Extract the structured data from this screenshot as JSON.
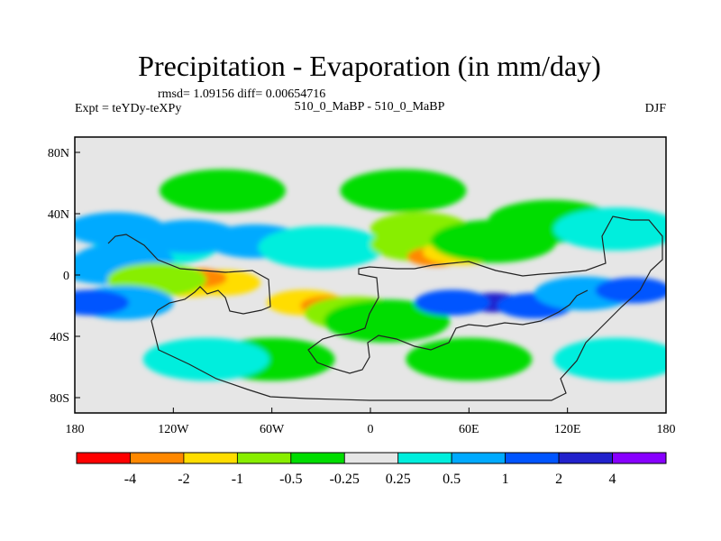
{
  "chart_data": {
    "type": "heatmap",
    "title": "Precipitation - Evaporation (in mm/day)",
    "stats": "rmsd= 1.09156 diff= 0.00654716",
    "experiment": "Expt = teYDy-teXPy",
    "comparison": "510_0_MaBP - 510_0_MaBP",
    "season": "DJF",
    "xlim": [
      -180,
      180
    ],
    "ylim": [
      -90,
      90
    ],
    "x_ticks": [
      {
        "value": -180,
        "label": "180"
      },
      {
        "value": -120,
        "label": "120W"
      },
      {
        "value": -60,
        "label": "60W"
      },
      {
        "value": 0,
        "label": "0"
      },
      {
        "value": 60,
        "label": "60E"
      },
      {
        "value": 120,
        "label": "120E"
      },
      {
        "value": 180,
        "label": "180"
      }
    ],
    "y_ticks": [
      {
        "value": 80,
        "label": "80N"
      },
      {
        "value": 40,
        "label": "40N"
      },
      {
        "value": 0,
        "label": "0"
      },
      {
        "value": -40,
        "label": "40S"
      },
      {
        "value": -80,
        "label": "80S"
      }
    ],
    "colorbar": {
      "colors": [
        "#ff0000",
        "#ff8800",
        "#ffdd00",
        "#88ee00",
        "#00dd00",
        "#e6e6e6",
        "#00eedd",
        "#00aaff",
        "#0055ff",
        "#2222cc",
        "#8800ff"
      ],
      "labels": [
        "-4",
        "-2",
        "-1",
        "-0.5",
        "-0.25",
        "0.25",
        "0.5",
        "1",
        "2",
        "4"
      ]
    },
    "fields": [
      {
        "lon": -130,
        "lat": 20,
        "level": 1
      },
      {
        "lon": -155,
        "lat": 30,
        "level": 2
      },
      {
        "lon": -110,
        "lat": 25,
        "level": 2
      },
      {
        "lon": -150,
        "lat": 10,
        "level": 2
      },
      {
        "lon": -70,
        "lat": 22,
        "level": 2
      },
      {
        "lon": -30,
        "lat": 18,
        "level": 1
      },
      {
        "lon": -160,
        "lat": 5,
        "level": 2
      },
      {
        "lon": -110,
        "lat": -6,
        "level": -3
      },
      {
        "lon": -90,
        "lat": -5,
        "level": -3
      },
      {
        "lon": -105,
        "lat": -2,
        "level": -4
      },
      {
        "lon": -130,
        "lat": -3,
        "level": -2
      },
      {
        "lon": -40,
        "lat": -18,
        "level": -3
      },
      {
        "lon": -25,
        "lat": -20,
        "level": -4
      },
      {
        "lon": -10,
        "lat": -25,
        "level": -2
      },
      {
        "lon": 10,
        "lat": -30,
        "level": -1
      },
      {
        "lon": 30,
        "lat": 20,
        "level": -2
      },
      {
        "lon": 40,
        "lat": 12,
        "level": -4
      },
      {
        "lon": 55,
        "lat": 15,
        "level": -3
      },
      {
        "lon": 30,
        "lat": 30,
        "level": -2
      },
      {
        "lon": 75,
        "lat": 22,
        "level": -1
      },
      {
        "lon": 75,
        "lat": -18,
        "level": 4
      },
      {
        "lon": 100,
        "lat": -20,
        "level": 3
      },
      {
        "lon": 50,
        "lat": -18,
        "level": 3
      },
      {
        "lon": 130,
        "lat": -12,
        "level": 2
      },
      {
        "lon": 160,
        "lat": -10,
        "level": 3
      },
      {
        "lon": -150,
        "lat": -18,
        "level": 2
      },
      {
        "lon": -170,
        "lat": -18,
        "level": 3
      },
      {
        "lon": 110,
        "lat": 35,
        "level": -1
      },
      {
        "lon": 150,
        "lat": 30,
        "level": 1
      },
      {
        "lon": -60,
        "lat": -55,
        "level": -1
      },
      {
        "lon": 60,
        "lat": -55,
        "level": -1
      },
      {
        "lon": -100,
        "lat": -55,
        "level": 1
      },
      {
        "lon": 150,
        "lat": -55,
        "level": 1
      },
      {
        "lon": 20,
        "lat": 55,
        "level": -1
      },
      {
        "lon": -90,
        "lat": 55,
        "level": -1
      }
    ]
  }
}
